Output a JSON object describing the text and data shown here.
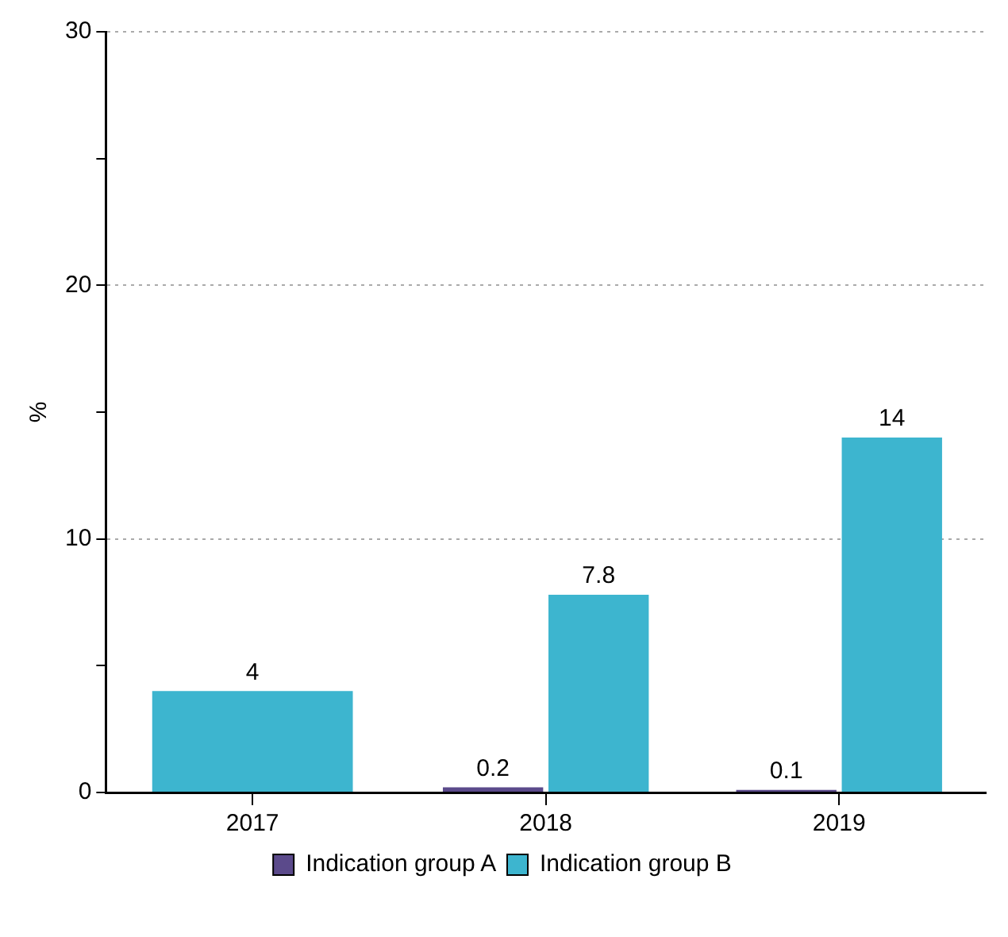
{
  "chart_data": {
    "type": "bar",
    "ylabel": "%",
    "categories": [
      "2017",
      "2018",
      "2019"
    ],
    "series": [
      {
        "name": "Indication group A",
        "color": "#5b4a8b",
        "values": [
          null,
          0.2,
          0.1
        ]
      },
      {
        "name": "Indication group B",
        "color": "#3db5cf",
        "values": [
          4,
          7.8,
          14
        ]
      }
    ],
    "ylim": [
      0,
      30
    ],
    "yticks": [
      0,
      {
        "value": 5,
        "label": null
      },
      10,
      {
        "value": 15,
        "label": null
      },
      20,
      {
        "value": 25,
        "label": null
      },
      30
    ],
    "grid": "y",
    "legend": "bottom",
    "data_labels": true
  }
}
